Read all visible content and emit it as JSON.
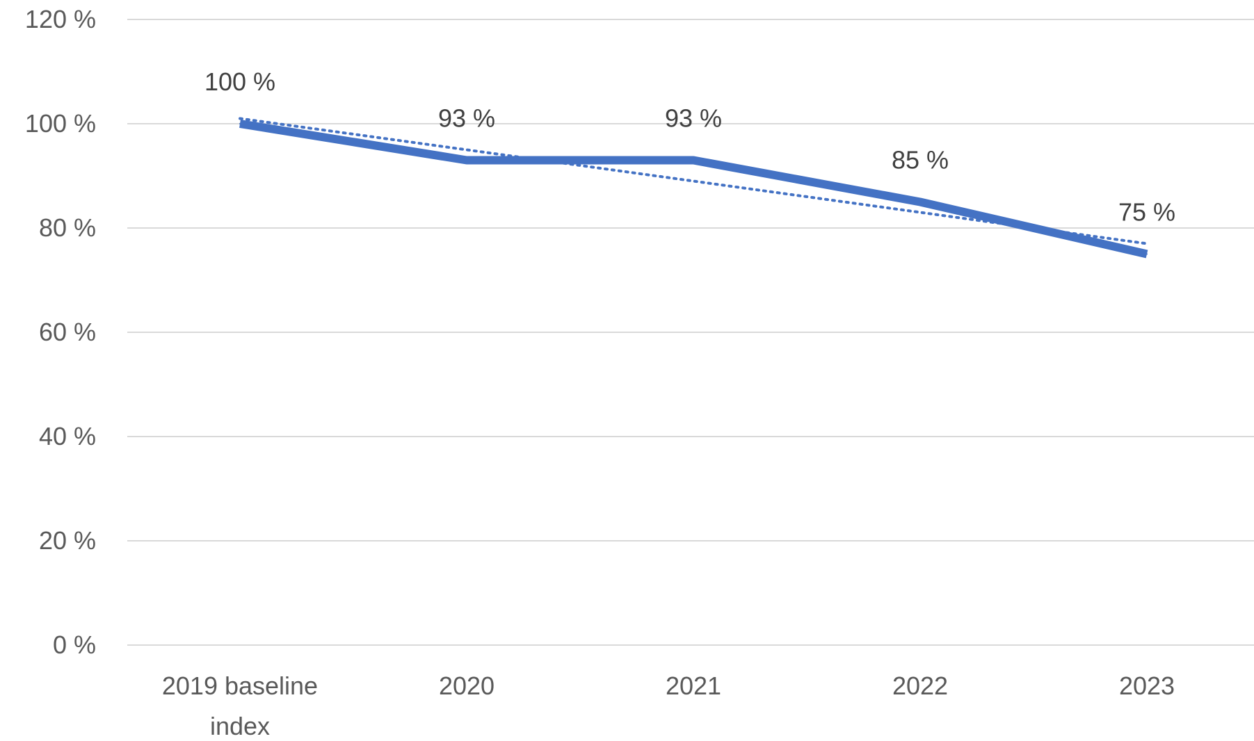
{
  "chart_data": {
    "type": "line",
    "title": "",
    "xlabel": "",
    "ylabel": "",
    "categories": [
      [
        "2019 baseline",
        "index"
      ],
      [
        "2020"
      ],
      [
        "2021"
      ],
      [
        "2022"
      ],
      [
        "2023"
      ]
    ],
    "ylim": [
      0,
      120
    ],
    "yticks": [
      0,
      20,
      40,
      60,
      80,
      100,
      120
    ],
    "ytick_labels": [
      "0 %",
      "20 %",
      "40 %",
      "60 %",
      "80 %",
      "100 %",
      "120 %"
    ],
    "grid": true,
    "legend": "none",
    "series": [
      {
        "values": [
          100,
          93,
          93,
          85,
          75
        ],
        "data_labels": [
          "100 %",
          "93 %",
          "93 %",
          "85 %",
          "75 %"
        ],
        "color": "#4472c4",
        "style": "solid"
      }
    ],
    "trendline": {
      "type": "linear",
      "start": 101,
      "end": 77,
      "color": "#4472c4",
      "style": "dotted"
    }
  }
}
